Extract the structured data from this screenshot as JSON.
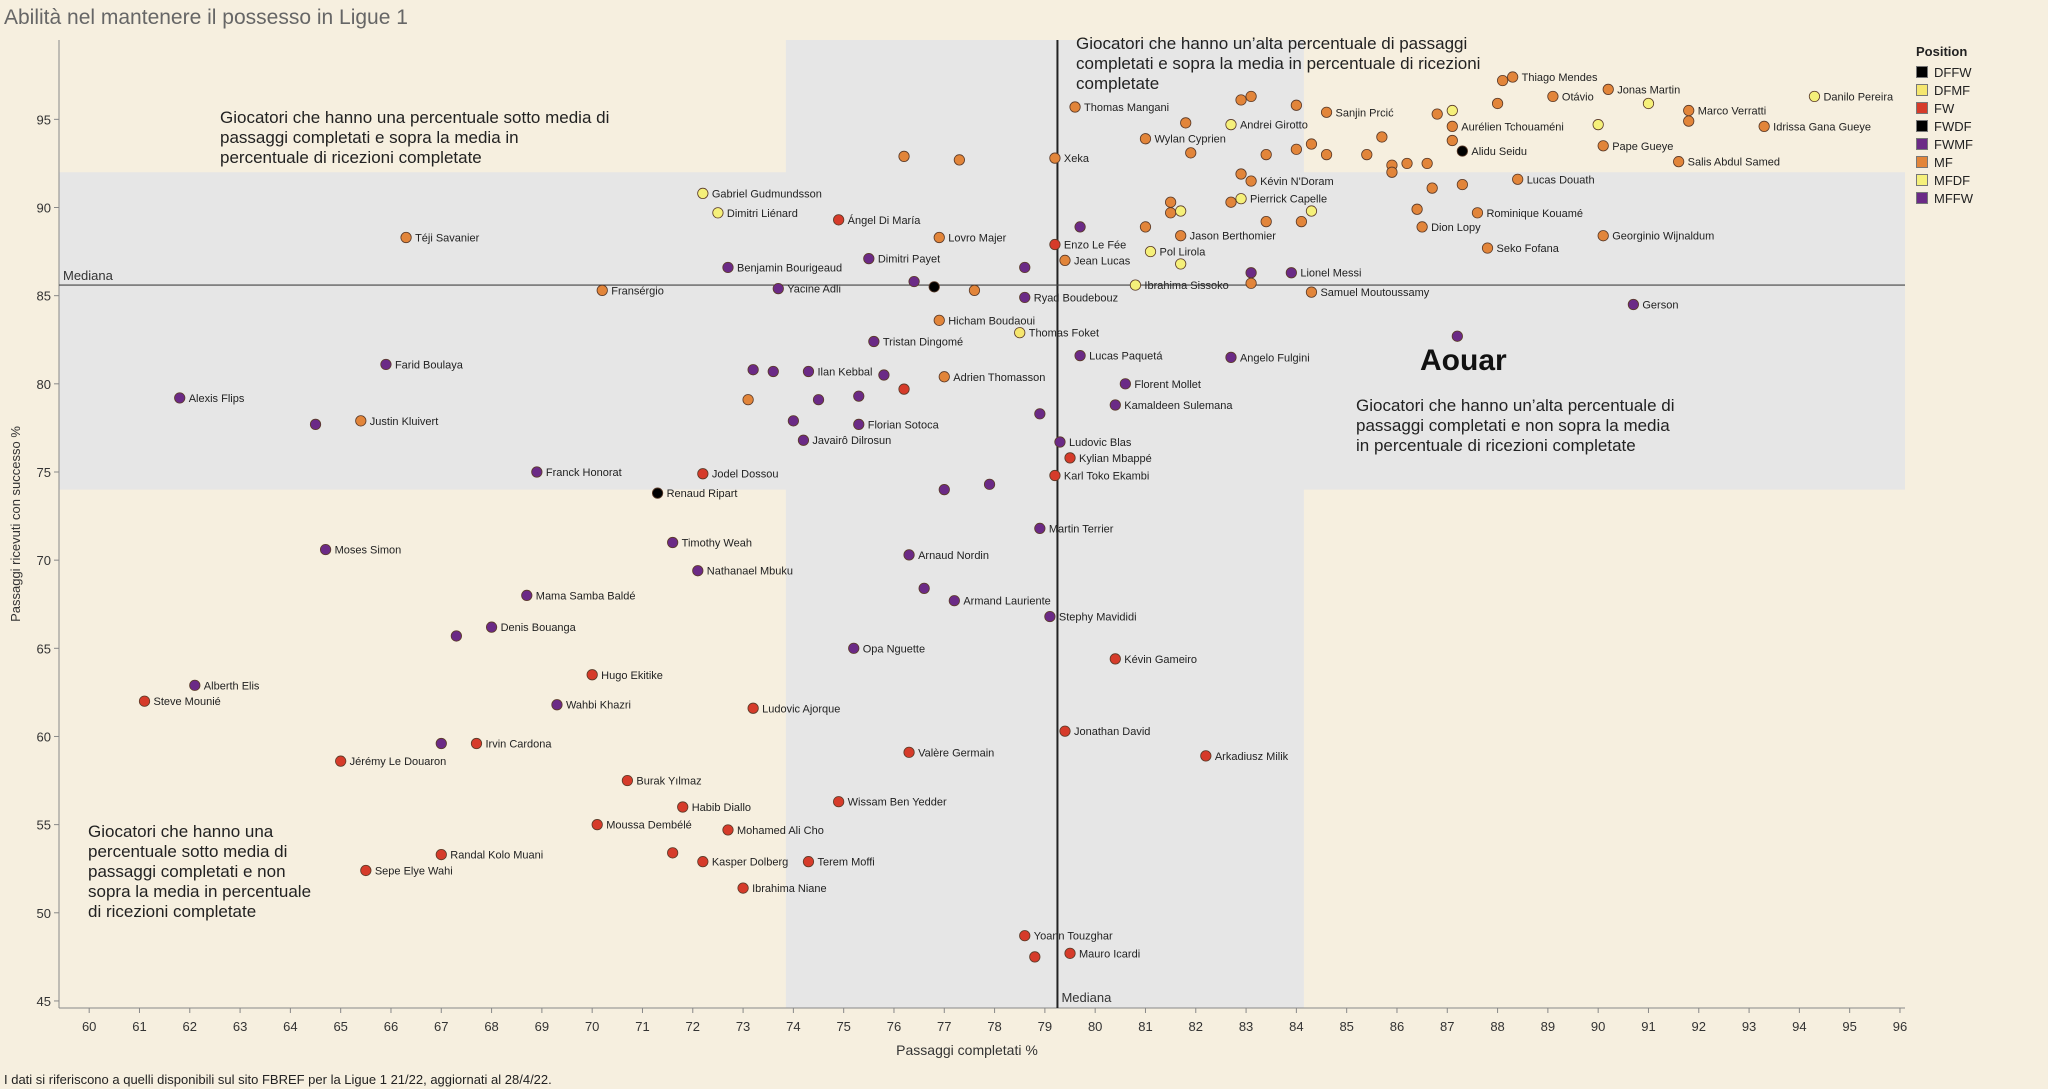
{
  "page": {
    "title": "Abilità nel mantenere il possesso in Ligue 1",
    "footnote": "I dati si riferiscono a quelli disponibili sul sito FBREF per la Ligue 1 21/22,  aggiornati al 28/4/22."
  },
  "quadrant_notes": {
    "top_right": "Giocatori che hanno un’alta percentuale di passaggi completati e sopra la media in percentuale di ricezioni completate",
    "top_left": "Giocatori che hanno una percentuale sotto media di passaggi completati e sopra la media in percentuale di ricezioni completate",
    "bottom_right": "Giocatori che hanno un’alta percentuale di passaggi completati e non sopra la media in percentuale di ricezioni completate",
    "bottom_left": "Giocatori che hanno una percentuale sotto media di passaggi completati e non sopra la media in percentuale di ricezioni completate"
  },
  "highlight_label": "Aouar",
  "legend": {
    "title": "Position",
    "items": [
      {
        "label": "DFFW",
        "color": "#000000"
      },
      {
        "label": "DFMF",
        "color": "#f5e66e"
      },
      {
        "label": "FW",
        "color": "#d63b2a"
      },
      {
        "label": "FWDF",
        "color": "#000000"
      },
      {
        "label": "FWMF",
        "color": "#6b2a86"
      },
      {
        "label": "MF",
        "color": "#e2853a"
      },
      {
        "label": "MFDF",
        "color": "#f5f07a"
      },
      {
        "label": "MFFW",
        "color": "#6b2a86"
      }
    ]
  },
  "chart_data": {
    "type": "scatter",
    "xlabel": "Passaggi completati %",
    "ylabel": "Passaggi ricevuti con successo %",
    "xlim": [
      59.4,
      96.1
    ],
    "ylim": [
      44.6,
      99.5
    ],
    "x_ticks": [
      60,
      61,
      62,
      63,
      64,
      65,
      66,
      67,
      68,
      69,
      70,
      71,
      72,
      73,
      74,
      75,
      76,
      77,
      78,
      79,
      80,
      81,
      82,
      83,
      84,
      85,
      86,
      87,
      88,
      89,
      90,
      91,
      92,
      93,
      94,
      95,
      96
    ],
    "y_ticks": [
      45,
      50,
      55,
      60,
      65,
      70,
      75,
      80,
      85,
      90,
      95
    ],
    "median_x": 79.25,
    "median_y": 85.6,
    "median_label": "Mediana",
    "band_x": [
      73.85,
      84.15
    ],
    "band_y": [
      74.0,
      92.0
    ],
    "colors": {
      "FW": "#d63b2a",
      "MF": "#e2853a",
      "FWMF": "#6b2a86",
      "MFFW": "#6b2a86",
      "MFDF": "#f5f07a",
      "DFMF": "#f5e66e",
      "DFFW": "#000000",
      "FWDF": "#000000"
    },
    "points": [
      {
        "name": "Thiago Mendes",
        "pos": "MF",
        "x": 88.3,
        "y": 97.4
      },
      {
        "name": "Jonas Martin",
        "pos": "MF",
        "x": 90.2,
        "y": 96.7
      },
      {
        "name": "Danilo Pereira",
        "pos": "MFDF",
        "x": 94.3,
        "y": 96.3
      },
      {
        "name": "Otávio",
        "pos": "MF",
        "x": 89.1,
        "y": 96.3
      },
      {
        "name": "Marco Verratti",
        "pos": "MF",
        "x": 91.8,
        "y": 95.5
      },
      {
        "name": "Sanjin Prcić",
        "pos": "MF",
        "x": 84.6,
        "y": 95.4
      },
      {
        "name": "Thomas Mangani",
        "pos": "MF",
        "x": 79.6,
        "y": 95.7
      },
      {
        "name": "Andrei Girotto",
        "pos": "MFDF",
        "x": 82.7,
        "y": 94.7
      },
      {
        "name": "Aurélien Tchouaméni",
        "pos": "MF",
        "x": 87.1,
        "y": 94.6
      },
      {
        "name": "Idrissa Gana Gueye",
        "pos": "MF",
        "x": 93.3,
        "y": 94.6
      },
      {
        "name": "Wylan Cyprien",
        "pos": "MF",
        "x": 81.0,
        "y": 93.9
      },
      {
        "name": "Pape Gueye",
        "pos": "MF",
        "x": 90.1,
        "y": 93.5
      },
      {
        "name": "Alidu Seidu",
        "pos": "DFFW",
        "x": 87.3,
        "y": 93.2
      },
      {
        "name": "Xeka",
        "pos": "MF",
        "x": 79.2,
        "y": 92.8
      },
      {
        "name": "Salis Abdul Samed",
        "pos": "MF",
        "x": 91.6,
        "y": 92.6
      },
      {
        "name": "Kévin N'Doram",
        "pos": "MF",
        "x": 83.1,
        "y": 91.5
      },
      {
        "name": "Lucas Douath",
        "pos": "MF",
        "x": 88.4,
        "y": 91.6
      },
      {
        "name": "Gabriel Gudmundsson",
        "pos": "MFDF",
        "x": 72.2,
        "y": 90.8
      },
      {
        "name": "Pierrick Capelle",
        "pos": "MFDF",
        "x": 82.9,
        "y": 90.5
      },
      {
        "name": "Dimitri Liénard",
        "pos": "MFDF",
        "x": 72.5,
        "y": 89.7
      },
      {
        "name": "Rominique Kouamé",
        "pos": "MF",
        "x": 87.6,
        "y": 89.7
      },
      {
        "name": "Ángel Di María",
        "pos": "FW",
        "x": 74.9,
        "y": 89.3
      },
      {
        "name": "Dion Lopy",
        "pos": "MF",
        "x": 86.5,
        "y": 88.9
      },
      {
        "name": "Jason Berthomier",
        "pos": "MF",
        "x": 81.7,
        "y": 88.4
      },
      {
        "name": "Georginio Wijnaldum",
        "pos": "MF",
        "x": 90.1,
        "y": 88.4
      },
      {
        "name": "Lovro Majer",
        "pos": "MF",
        "x": 76.9,
        "y": 88.3
      },
      {
        "name": "Téji Savanier",
        "pos": "MF",
        "x": 66.3,
        "y": 88.3
      },
      {
        "name": "Enzo Le Fée",
        "pos": "FW",
        "x": 79.2,
        "y": 87.9
      },
      {
        "name": "Seko Fofana",
        "pos": "MF",
        "x": 87.8,
        "y": 87.7
      },
      {
        "name": "Pol Lirola",
        "pos": "MFDF",
        "x": 81.1,
        "y": 87.5
      },
      {
        "name": "Dimitri Payet",
        "pos": "FWMF",
        "x": 75.5,
        "y": 87.1
      },
      {
        "name": "Jean Lucas",
        "pos": "MF",
        "x": 79.4,
        "y": 87.0
      },
      {
        "name": "Benjamin Bourigeaud",
        "pos": "FWMF",
        "x": 72.7,
        "y": 86.6
      },
      {
        "name": "Lionel Messi",
        "pos": "FWMF",
        "x": 83.9,
        "y": 86.3
      },
      {
        "name": "Ibrahima Sissoko",
        "pos": "MFDF",
        "x": 80.8,
        "y": 85.6
      },
      {
        "name": "Fransérgio",
        "pos": "MF",
        "x": 70.2,
        "y": 85.3
      },
      {
        "name": "Yacine Adli",
        "pos": "FWMF",
        "x": 73.7,
        "y": 85.4
      },
      {
        "name": "Samuel Moutoussamy",
        "pos": "MF",
        "x": 84.3,
        "y": 85.2
      },
      {
        "name": "Ryad Boudebouz",
        "pos": "FWMF",
        "x": 78.6,
        "y": 84.9
      },
      {
        "name": "Gerson",
        "pos": "FWMF",
        "x": 90.7,
        "y": 84.5
      },
      {
        "name": "Hicham Boudaoui",
        "pos": "MF",
        "x": 76.9,
        "y": 83.6
      },
      {
        "name": "Thomas Foket",
        "pos": "DFMF",
        "x": 78.5,
        "y": 82.9
      },
      {
        "name": "Aouar",
        "pos": "FWMF",
        "x": 87.2,
        "y": 82.7,
        "show_label": false
      },
      {
        "name": "Tristan Dingomé",
        "pos": "FWMF",
        "x": 75.6,
        "y": 82.4
      },
      {
        "name": "Lucas Paquetá",
        "pos": "FWMF",
        "x": 79.7,
        "y": 81.6
      },
      {
        "name": "Angelo Fulgini",
        "pos": "FWMF",
        "x": 82.7,
        "y": 81.5
      },
      {
        "name": "Farid Boulaya",
        "pos": "FWMF",
        "x": 65.9,
        "y": 81.1
      },
      {
        "name": "Ilan Kebbal",
        "pos": "FWMF",
        "x": 74.3,
        "y": 80.7
      },
      {
        "name": "Adrien Thomasson",
        "pos": "MF",
        "x": 77.0,
        "y": 80.4
      },
      {
        "name": "Florent Mollet",
        "pos": "FWMF",
        "x": 80.6,
        "y": 80.0
      },
      {
        "name": "Alexis Flips",
        "pos": "FWMF",
        "x": 61.8,
        "y": 79.2
      },
      {
        "name": "Kamaldeen Sulemana",
        "pos": "FWMF",
        "x": 80.4,
        "y": 78.8
      },
      {
        "name": "Justin Kluivert",
        "pos": "MF",
        "x": 65.4,
        "y": 77.9
      },
      {
        "name": "Florian Sotoca",
        "pos": "FWMF",
        "x": 75.3,
        "y": 77.7
      },
      {
        "name": "Javairô Dilrosun",
        "pos": "FWMF",
        "x": 74.2,
        "y": 76.8
      },
      {
        "name": "Ludovic Blas",
        "pos": "FWMF",
        "x": 79.3,
        "y": 76.7
      },
      {
        "name": "Kylian Mbappé",
        "pos": "FW",
        "x": 79.5,
        "y": 75.8
      },
      {
        "name": "Franck Honorat",
        "pos": "FWMF",
        "x": 68.9,
        "y": 75.0
      },
      {
        "name": "Jodel Dossou",
        "pos": "FW",
        "x": 72.2,
        "y": 74.9
      },
      {
        "name": "Karl Toko Ekambi",
        "pos": "FW",
        "x": 79.2,
        "y": 74.8
      },
      {
        "name": "Renaud Ripart",
        "pos": "DFFW",
        "x": 71.3,
        "y": 73.8
      },
      {
        "name": "Martin Terrier",
        "pos": "FWMF",
        "x": 78.9,
        "y": 71.8
      },
      {
        "name": "Timothy Weah",
        "pos": "FWMF",
        "x": 71.6,
        "y": 71.0
      },
      {
        "name": "Moses Simon",
        "pos": "FWMF",
        "x": 64.7,
        "y": 70.6
      },
      {
        "name": "Arnaud Nordin",
        "pos": "FWMF",
        "x": 76.3,
        "y": 70.3
      },
      {
        "name": "Nathanael Mbuku",
        "pos": "FWMF",
        "x": 72.1,
        "y": 69.4
      },
      {
        "name": "Mama Samba Baldé",
        "pos": "FWMF",
        "x": 68.7,
        "y": 68.0
      },
      {
        "name": "Armand Lauriente",
        "pos": "FWMF",
        "x": 77.2,
        "y": 67.7
      },
      {
        "name": "Stephy Mavididi",
        "pos": "FWMF",
        "x": 79.1,
        "y": 66.8
      },
      {
        "name": "Denis Bouanga",
        "pos": "FWMF",
        "x": 68.0,
        "y": 66.2
      },
      {
        "name": "Opa Nguette",
        "pos": "FWMF",
        "x": 75.2,
        "y": 65.0
      },
      {
        "name": "Kévin Gameiro",
        "pos": "FW",
        "x": 80.4,
        "y": 64.4
      },
      {
        "name": "Hugo Ekitike",
        "pos": "FW",
        "x": 70.0,
        "y": 63.5
      },
      {
        "name": "Alberth Elis",
        "pos": "FWMF",
        "x": 62.1,
        "y": 62.9
      },
      {
        "name": "Steve Mounié",
        "pos": "FW",
        "x": 61.1,
        "y": 62.0
      },
      {
        "name": "Wahbi Khazri",
        "pos": "FWMF",
        "x": 69.3,
        "y": 61.8
      },
      {
        "name": "Ludovic Ajorque",
        "pos": "FW",
        "x": 73.2,
        "y": 61.6
      },
      {
        "name": "Jonathan David",
        "pos": "FW",
        "x": 79.4,
        "y": 60.3
      },
      {
        "name": "Irvin Cardona",
        "pos": "FW",
        "x": 67.7,
        "y": 59.6
      },
      {
        "name": "Valère Germain",
        "pos": "FW",
        "x": 76.3,
        "y": 59.1
      },
      {
        "name": "Arkadiusz Milik",
        "pos": "FW",
        "x": 82.2,
        "y": 58.9
      },
      {
        "name": "Jérémy Le Douaron",
        "pos": "FW",
        "x": 65.0,
        "y": 58.6
      },
      {
        "name": "Burak Yılmaz",
        "pos": "FW",
        "x": 70.7,
        "y": 57.5
      },
      {
        "name": "Wissam Ben Yedder",
        "pos": "FW",
        "x": 74.9,
        "y": 56.3
      },
      {
        "name": "Habib Diallo",
        "pos": "FW",
        "x": 71.8,
        "y": 56.0
      },
      {
        "name": "Moussa Dembélé",
        "pos": "FW",
        "x": 70.1,
        "y": 55.0
      },
      {
        "name": "Mohamed Ali Cho",
        "pos": "FW",
        "x": 72.7,
        "y": 54.7
      },
      {
        "name": "Randal Kolo Muani",
        "pos": "FW",
        "x": 67.0,
        "y": 53.3
      },
      {
        "name": "Kasper Dolberg",
        "pos": "FW",
        "x": 72.2,
        "y": 52.9
      },
      {
        "name": "Terem Moffi",
        "pos": "FW",
        "x": 74.3,
        "y": 52.9
      },
      {
        "name": "Sepe Elye Wahi",
        "pos": "FW",
        "x": 65.5,
        "y": 52.4
      },
      {
        "name": "Ibrahima Niane",
        "pos": "FW",
        "x": 73.0,
        "y": 51.4
      },
      {
        "name": "Yoann Touzghar",
        "pos": "FW",
        "x": 78.6,
        "y": 48.7
      },
      {
        "name": "Mauro Icardi",
        "pos": "FW",
        "x": 79.5,
        "y": 47.7
      },
      {
        "pos": "FW",
        "x": 78.8,
        "y": 47.5
      },
      {
        "pos": "FW",
        "x": 71.6,
        "y": 53.4
      },
      {
        "pos": "FWMF",
        "x": 67.0,
        "y": 59.6
      },
      {
        "pos": "FWMF",
        "x": 67.3,
        "y": 65.7
      },
      {
        "pos": "FWMF",
        "x": 76.6,
        "y": 68.4
      },
      {
        "pos": "FWMF",
        "x": 64.5,
        "y": 77.7
      },
      {
        "pos": "FWMF",
        "x": 77.9,
        "y": 74.3
      },
      {
        "pos": "FWMF",
        "x": 77.0,
        "y": 74.0
      },
      {
        "pos": "FWMF",
        "x": 74.0,
        "y": 77.9
      },
      {
        "pos": "MF",
        "x": 73.1,
        "y": 79.1
      },
      {
        "pos": "FWMF",
        "x": 74.5,
        "y": 79.1
      },
      {
        "pos": "FWMF",
        "x": 75.3,
        "y": 79.3
      },
      {
        "pos": "FWMF",
        "x": 73.2,
        "y": 80.8
      },
      {
        "pos": "FWMF",
        "x": 73.6,
        "y": 80.7
      },
      {
        "pos": "FWMF",
        "x": 75.8,
        "y": 80.5
      },
      {
        "pos": "FW",
        "x": 76.2,
        "y": 79.7
      },
      {
        "pos": "FWMF",
        "x": 78.9,
        "y": 78.3
      },
      {
        "pos": "FWMF",
        "x": 76.4,
        "y": 85.8
      },
      {
        "pos": "DFFW",
        "x": 76.8,
        "y": 85.5
      },
      {
        "pos": "MF",
        "x": 77.6,
        "y": 85.3
      },
      {
        "pos": "FWMF",
        "x": 78.6,
        "y": 86.6
      },
      {
        "pos": "FWMF",
        "x": 79.7,
        "y": 88.9
      },
      {
        "pos": "MF",
        "x": 76.2,
        "y": 92.9
      },
      {
        "pos": "MF",
        "x": 77.3,
        "y": 92.7
      },
      {
        "pos": "MF",
        "x": 81.0,
        "y": 88.9
      },
      {
        "pos": "MF",
        "x": 81.5,
        "y": 89.7
      },
      {
        "pos": "MF",
        "x": 81.5,
        "y": 90.3
      },
      {
        "pos": "MFDF",
        "x": 81.7,
        "y": 89.8
      },
      {
        "pos": "MFDF",
        "x": 81.7,
        "y": 86.8
      },
      {
        "pos": "MF",
        "x": 82.7,
        "y": 90.3
      },
      {
        "pos": "MF",
        "x": 83.4,
        "y": 89.2
      },
      {
        "pos": "MF",
        "x": 84.1,
        "y": 89.2
      },
      {
        "pos": "MFDF",
        "x": 84.3,
        "y": 89.8
      },
      {
        "pos": "FWMF",
        "x": 83.1,
        "y": 86.3
      },
      {
        "pos": "MF",
        "x": 83.1,
        "y": 85.7
      },
      {
        "pos": "MF",
        "x": 82.9,
        "y": 91.9
      },
      {
        "pos": "MF",
        "x": 82.9,
        "y": 96.1
      },
      {
        "pos": "MF",
        "x": 83.1,
        "y": 96.3
      },
      {
        "pos": "MF",
        "x": 84.0,
        "y": 95.8
      },
      {
        "pos": "MF",
        "x": 81.8,
        "y": 94.8
      },
      {
        "pos": "MF",
        "x": 81.9,
        "y": 93.1
      },
      {
        "pos": "MF",
        "x": 83.4,
        "y": 93.0
      },
      {
        "pos": "MF",
        "x": 84.0,
        "y": 93.3
      },
      {
        "pos": "MF",
        "x": 84.3,
        "y": 93.6
      },
      {
        "pos": "MF",
        "x": 84.6,
        "y": 93.0
      },
      {
        "pos": "MF",
        "x": 85.4,
        "y": 93.0
      },
      {
        "pos": "MF",
        "x": 85.7,
        "y": 94.0
      },
      {
        "pos": "MF",
        "x": 85.9,
        "y": 92.4
      },
      {
        "pos": "MF",
        "x": 85.9,
        "y": 92.0
      },
      {
        "pos": "MF",
        "x": 86.2,
        "y": 92.5
      },
      {
        "pos": "MF",
        "x": 86.6,
        "y": 92.5
      },
      {
        "pos": "MF",
        "x": 86.7,
        "y": 91.1
      },
      {
        "pos": "MF",
        "x": 86.4,
        "y": 89.9
      },
      {
        "pos": "MF",
        "x": 86.8,
        "y": 95.3
      },
      {
        "pos": "MFDF",
        "x": 87.1,
        "y": 95.5
      },
      {
        "pos": "MF",
        "x": 87.1,
        "y": 93.8
      },
      {
        "pos": "MF",
        "x": 87.3,
        "y": 91.3
      },
      {
        "pos": "MF",
        "x": 88.0,
        "y": 95.9
      },
      {
        "pos": "MF",
        "x": 88.1,
        "y": 97.2
      },
      {
        "pos": "MFDF",
        "x": 90.0,
        "y": 94.7
      },
      {
        "pos": "MFDF",
        "x": 91.0,
        "y": 95.9
      },
      {
        "pos": "MF",
        "x": 91.8,
        "y": 94.9
      }
    ]
  }
}
